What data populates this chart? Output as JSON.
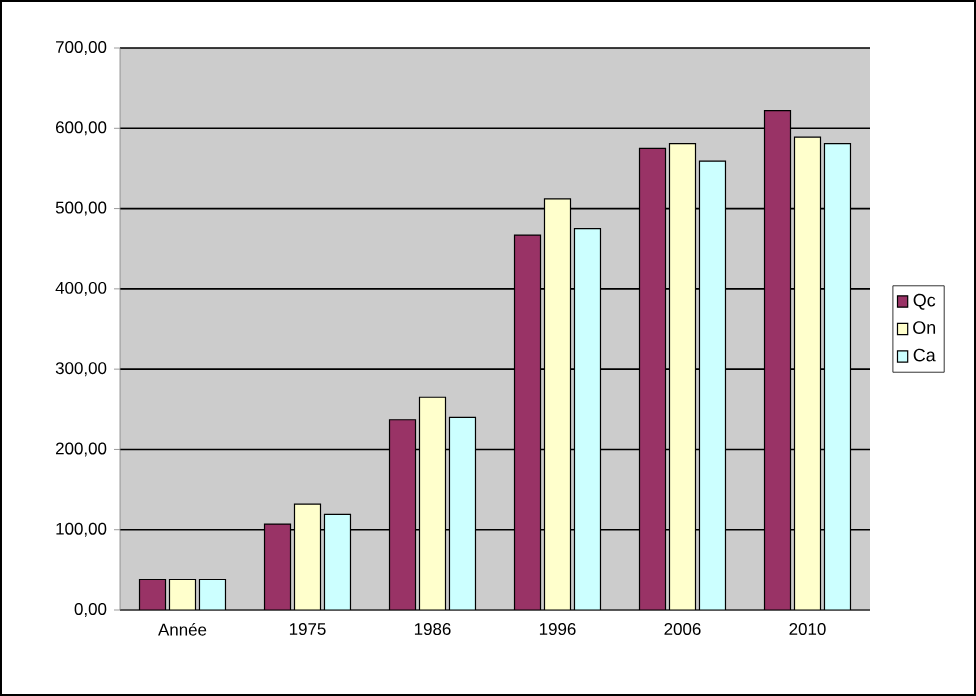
{
  "chart_data": {
    "type": "bar",
    "categories": [
      "Année",
      "1975",
      "1986",
      "1996",
      "2006",
      "2010"
    ],
    "series": [
      {
        "name": "Qc",
        "color": "#993366",
        "values": [
          38,
          107,
          237,
          467,
          575,
          622
        ]
      },
      {
        "name": "On",
        "color": "#ffffcc",
        "values": [
          38,
          132,
          265,
          512,
          581,
          589
        ]
      },
      {
        "name": "Ca",
        "color": "#ccffff",
        "values": [
          38,
          119,
          240,
          475,
          559,
          581
        ]
      }
    ],
    "ylim": [
      0,
      700
    ],
    "yticks": [
      {
        "value": 0,
        "label": "0,00"
      },
      {
        "value": 100,
        "label": "100,00"
      },
      {
        "value": 200,
        "label": "200,00"
      },
      {
        "value": 300,
        "label": "300,00"
      },
      {
        "value": 400,
        "label": "400,00"
      },
      {
        "value": 500,
        "label": "500,00"
      },
      {
        "value": 600,
        "label": "600,00"
      },
      {
        "value": 700,
        "label": "700,00"
      }
    ],
    "grid": "y",
    "legend": "right"
  }
}
